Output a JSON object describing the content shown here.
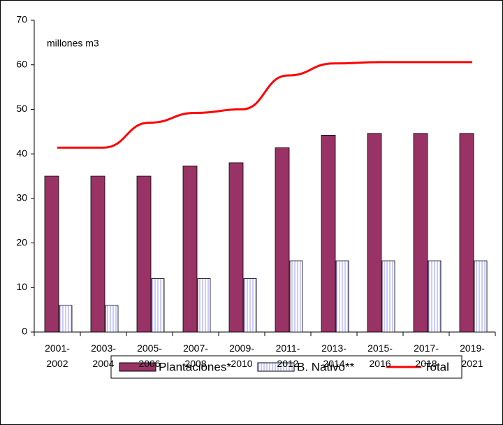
{
  "chart_data": {
    "type": "bar_line",
    "annotation": "millones m3",
    "categories": [
      "2001-\n2002",
      "2003-\n2004",
      "2005-\n2006",
      "2007-\n2008",
      "2009-\n2010",
      "2011-\n2012",
      "2013-\n2014",
      "2015-\n2016",
      "2017-\n2018",
      "2019-\n2021"
    ],
    "series": [
      {
        "name": "Plantaciones*",
        "type": "bar",
        "color": "#993366",
        "values": [
          35,
          35,
          35,
          37.3,
          38,
          41.4,
          44.2,
          44.6,
          44.6,
          44.6
        ]
      },
      {
        "name": "B. Nativo**",
        "type": "bar",
        "color": "#9999ff",
        "hatch": true,
        "values": [
          6,
          6,
          12,
          12,
          12,
          16,
          16,
          16,
          16,
          16
        ]
      },
      {
        "name": "Total",
        "type": "line",
        "color": "#ff0000",
        "values": [
          41.4,
          41.4,
          47,
          49.2,
          50,
          57.6,
          60.3,
          60.6,
          60.6,
          60.6
        ]
      }
    ],
    "ylim": [
      0,
      70
    ],
    "yticks": [
      0,
      10,
      20,
      30,
      40,
      50,
      60,
      70
    ],
    "legend": "bottom"
  }
}
